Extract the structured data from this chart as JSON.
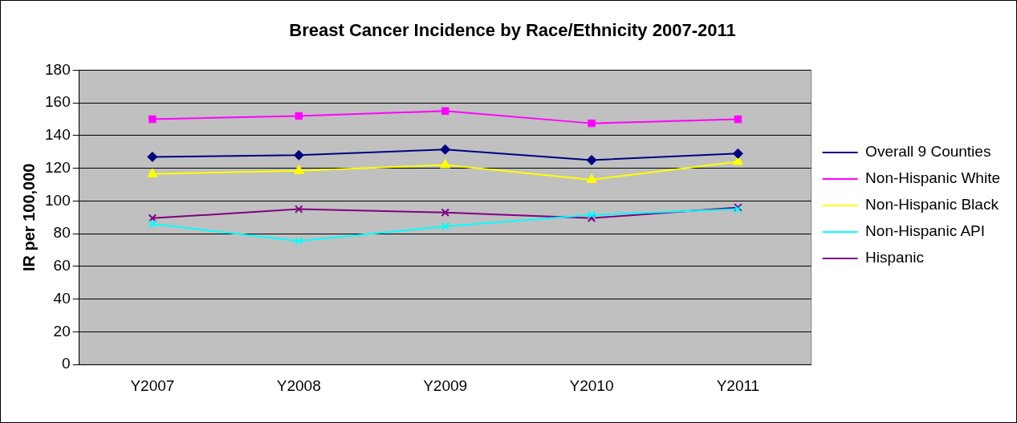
{
  "chart_data": {
    "type": "line",
    "title": "Breast Cancer Incidence by Race/Ethnicity 2007-2011",
    "ylabel": "IR per 100,000",
    "categories": [
      "Y2007",
      "Y2008",
      "Y2009",
      "Y2010",
      "Y2011"
    ],
    "series": [
      {
        "name": "Overall 9 Counties",
        "color": "#000080",
        "marker": "diamond",
        "values": [
          127,
          128,
          131.5,
          125,
          129
        ]
      },
      {
        "name": "Non-Hispanic White",
        "color": "#ff00ff",
        "marker": "square",
        "values": [
          150,
          152,
          155,
          147.5,
          150
        ]
      },
      {
        "name": "Non-Hispanic Black",
        "color": "#ffff00",
        "marker": "triangle",
        "values": [
          116.5,
          118.5,
          122,
          113,
          124
        ]
      },
      {
        "name": "Non-Hispanic API",
        "color": "#00ffff",
        "marker": "cross",
        "values": [
          86,
          75.5,
          84.5,
          91.5,
          95
        ]
      },
      {
        "name": "Hispanic",
        "color": "#800080",
        "marker": "cross",
        "values": [
          89.5,
          95,
          93,
          89.5,
          96
        ]
      }
    ],
    "ylim": [
      0,
      180
    ],
    "yticks": [
      0,
      20,
      40,
      60,
      80,
      100,
      120,
      140,
      160,
      180
    ],
    "grid": "y",
    "legend": "right"
  }
}
